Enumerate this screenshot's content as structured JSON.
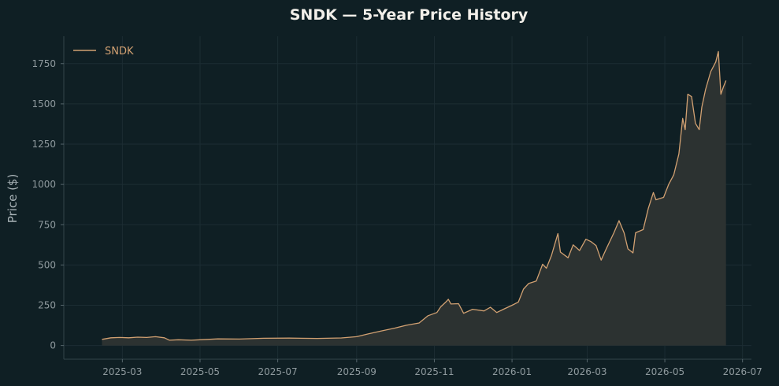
{
  "chart_data": {
    "type": "area",
    "title": "SNDK — 5-Year Price History",
    "xlabel": "",
    "ylabel": "Price ($)",
    "ylim": [
      -85,
      1920
    ],
    "xlim": [
      "2025-01-14",
      "2026-07-08"
    ],
    "grid": true,
    "legend_position": "top-left",
    "y_ticks": [
      0,
      250,
      500,
      750,
      1000,
      1250,
      1500,
      1750
    ],
    "y_tick_labels": [
      "0",
      "250",
      "500",
      "750",
      "1000",
      "1250",
      "1500",
      "1750"
    ],
    "x_ticks": [
      "2025-03-01",
      "2025-05-01",
      "2025-07-01",
      "2025-09-01",
      "2025-11-01",
      "2026-01-01",
      "2026-03-01",
      "2026-05-01",
      "2026-07-01"
    ],
    "x_tick_labels": [
      "2025-03",
      "2025-05",
      "2025-07",
      "2025-09",
      "2025-11",
      "2026-01",
      "2026-03",
      "2026-05",
      "2026-07"
    ],
    "series": [
      {
        "name": "SNDK",
        "color": "#d2a172",
        "fill_color": "#2c3231",
        "points": [
          [
            "2025-02-13",
            38
          ],
          [
            "2025-02-20",
            48
          ],
          [
            "2025-02-27",
            50
          ],
          [
            "2025-03-06",
            48
          ],
          [
            "2025-03-13",
            52
          ],
          [
            "2025-03-20",
            50
          ],
          [
            "2025-03-27",
            55
          ],
          [
            "2025-04-03",
            48
          ],
          [
            "2025-04-07",
            33
          ],
          [
            "2025-04-14",
            36
          ],
          [
            "2025-04-24",
            33
          ],
          [
            "2025-05-01",
            36
          ],
          [
            "2025-05-15",
            41
          ],
          [
            "2025-06-01",
            40
          ],
          [
            "2025-06-20",
            45
          ],
          [
            "2025-07-10",
            46
          ],
          [
            "2025-08-01",
            44
          ],
          [
            "2025-08-20",
            47
          ],
          [
            "2025-09-01",
            55
          ],
          [
            "2025-09-10",
            72
          ],
          [
            "2025-09-20",
            90
          ],
          [
            "2025-10-01",
            108
          ],
          [
            "2025-10-10",
            126
          ],
          [
            "2025-10-20",
            140
          ],
          [
            "2025-10-27",
            185
          ],
          [
            "2025-11-03",
            205
          ],
          [
            "2025-11-06",
            240
          ],
          [
            "2025-11-10",
            270
          ],
          [
            "2025-11-12",
            287
          ],
          [
            "2025-11-14",
            258
          ],
          [
            "2025-11-20",
            260
          ],
          [
            "2025-11-24",
            200
          ],
          [
            "2025-12-01",
            225
          ],
          [
            "2025-12-10",
            215
          ],
          [
            "2025-12-15",
            238
          ],
          [
            "2025-12-20",
            205
          ],
          [
            "2025-12-26",
            228
          ],
          [
            "2026-01-01",
            250
          ],
          [
            "2026-01-06",
            270
          ],
          [
            "2026-01-10",
            350
          ],
          [
            "2026-01-14",
            385
          ],
          [
            "2026-01-20",
            400
          ],
          [
            "2026-01-25",
            505
          ],
          [
            "2026-01-28",
            480
          ],
          [
            "2026-02-01",
            560
          ],
          [
            "2026-02-06",
            695
          ],
          [
            "2026-02-08",
            580
          ],
          [
            "2026-02-14",
            545
          ],
          [
            "2026-02-18",
            625
          ],
          [
            "2026-02-23",
            590
          ],
          [
            "2026-02-28",
            660
          ],
          [
            "2026-03-04",
            645
          ],
          [
            "2026-03-08",
            620
          ],
          [
            "2026-03-12",
            530
          ],
          [
            "2026-03-16",
            600
          ],
          [
            "2026-03-22",
            700
          ],
          [
            "2026-03-26",
            775
          ],
          [
            "2026-03-30",
            700
          ],
          [
            "2026-04-02",
            600
          ],
          [
            "2026-04-06",
            575
          ],
          [
            "2026-04-08",
            700
          ],
          [
            "2026-04-14",
            720
          ],
          [
            "2026-04-18",
            850
          ],
          [
            "2026-04-22",
            950
          ],
          [
            "2026-04-24",
            905
          ],
          [
            "2026-04-30",
            920
          ],
          [
            "2026-05-04",
            1000
          ],
          [
            "2026-05-08",
            1060
          ],
          [
            "2026-05-12",
            1190
          ],
          [
            "2026-05-15",
            1410
          ],
          [
            "2026-05-17",
            1340
          ],
          [
            "2026-05-19",
            1560
          ],
          [
            "2026-05-22",
            1545
          ],
          [
            "2026-05-25",
            1380
          ],
          [
            "2026-05-28",
            1340
          ],
          [
            "2026-05-30",
            1480
          ],
          [
            "2026-06-02",
            1590
          ],
          [
            "2026-06-06",
            1700
          ],
          [
            "2026-06-10",
            1760
          ],
          [
            "2026-06-12",
            1825
          ],
          [
            "2026-06-14",
            1560
          ],
          [
            "2026-06-16",
            1605
          ],
          [
            "2026-06-18",
            1645
          ]
        ]
      }
    ]
  }
}
